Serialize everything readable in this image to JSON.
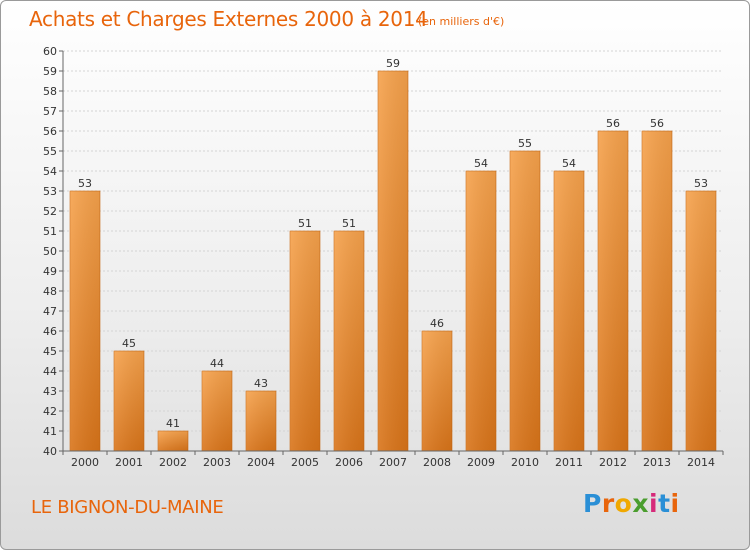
{
  "header": {
    "title": "Achats et Charges Externes 2000 à 2014",
    "subtitle": "(en milliers d'€)"
  },
  "footer": {
    "place": "LE BIGNON-DU-MAINE",
    "logo": {
      "text": "Proxiti",
      "colors": [
        "#2a8fd6",
        "#e8650c",
        "#f0a800",
        "#4a9d2e",
        "#d62a7a",
        "#2a8fd6",
        "#e8650c"
      ]
    }
  },
  "chart_data": {
    "type": "bar",
    "categories": [
      "2000",
      "2001",
      "2002",
      "2003",
      "2004",
      "2005",
      "2006",
      "2007",
      "2008",
      "2009",
      "2010",
      "2011",
      "2012",
      "2013",
      "2014"
    ],
    "values": [
      53,
      45,
      41,
      44,
      43,
      51,
      51,
      59,
      46,
      54,
      55,
      54,
      56,
      56,
      53
    ],
    "data_labels": [
      "53",
      "45",
      "41",
      "44",
      "43",
      "51",
      "51",
      "59",
      "46",
      "54",
      "55",
      "54",
      "56",
      "56",
      "53"
    ],
    "title": "Achats et Charges Externes 2000 à 2014",
    "xlabel": "",
    "ylabel": "",
    "ylim": [
      40,
      60
    ],
    "yticks": [
      "40",
      "41",
      "42",
      "43",
      "44",
      "45",
      "46",
      "47",
      "48",
      "49",
      "50",
      "51",
      "52",
      "53",
      "54",
      "55",
      "56",
      "57",
      "58",
      "59",
      "60"
    ],
    "grid": true,
    "bar_color": "#f29a3f",
    "bar_color_dark": "#d4721c"
  }
}
